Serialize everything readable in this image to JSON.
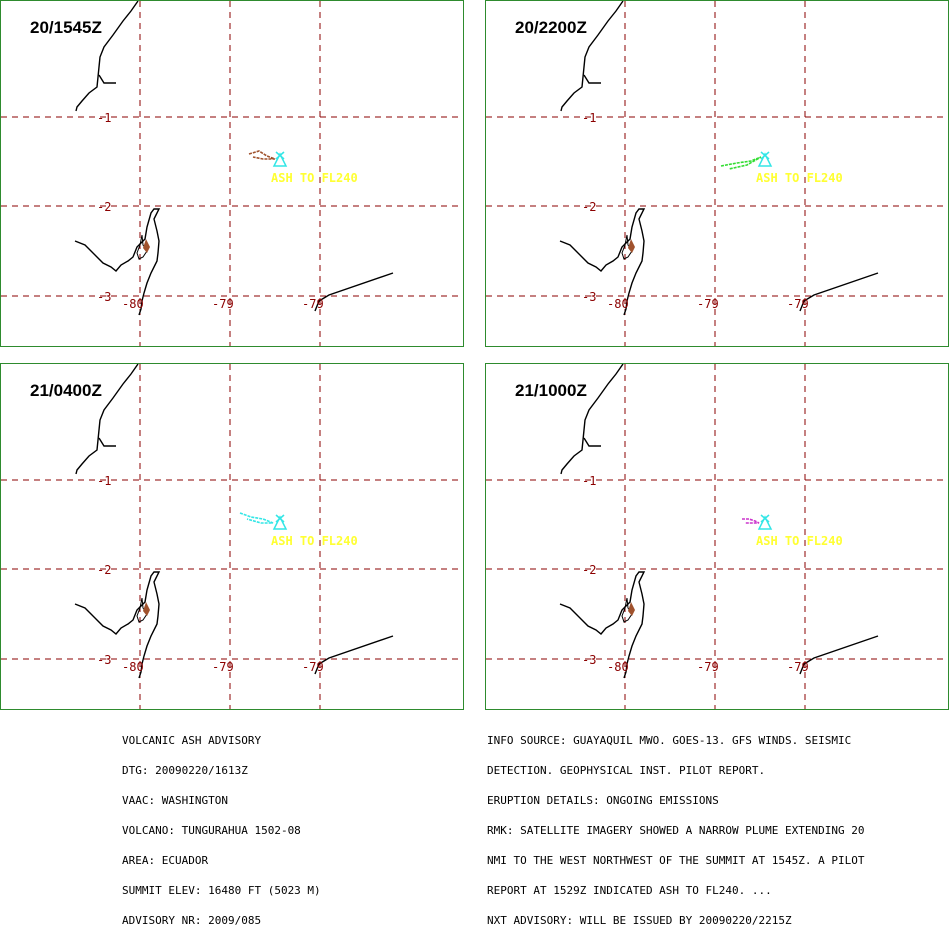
{
  "panels": [
    {
      "time": "20/1545Z",
      "plume_color": "#a0522d"
    },
    {
      "time": "20/2200Z",
      "plume_color": "#33dd33"
    },
    {
      "time": "21/0400Z",
      "plume_color": "#33e6e6"
    },
    {
      "time": "21/1000Z",
      "plume_color": "#cc33cc"
    }
  ],
  "map": {
    "lat_labels": [
      "-1",
      "-2",
      "-3"
    ],
    "lon_labels": [
      "-80",
      "-79",
      "-79"
    ],
    "ash_label": "ASH TO FL240",
    "colors": {
      "grid": "#8b0000",
      "coast": "#000000",
      "volcano": "#33e6e6",
      "ash_text": "#ffff33",
      "panel_border": "#2e8b2e"
    }
  },
  "advisory_left": [
    "VOLCANIC ASH ADVISORY",
    "DTG: 20090220/1613Z",
    "VAAC: WASHINGTON",
    "VOLCANO: TUNGURAHUA 1502-08",
    "AREA: ECUADOR",
    "SUMMIT ELEV: 16480 FT (5023 M)",
    "ADVISORY NR: 2009/085"
  ],
  "advisory_right": [
    "INFO SOURCE: GUAYAQUIL MWO. GOES-13. GFS WINDS. SEISMIC",
    "DETECTION. GEOPHYSICAL INST. PILOT REPORT.",
    "ERUPTION DETAILS: ONGOING EMISSIONS",
    "RMK: SATELLITE IMAGERY SHOWED A NARROW PLUME EXTENDING 20",
    "NMI TO THE WEST NORTHWEST OF THE SUMMIT AT 1545Z. A PILOT",
    "REPORT AT 1529Z INDICATED ASH TO FL240. ...",
    "NXT ADVISORY: WILL BE ISSUED BY 20090220/2215Z"
  ]
}
